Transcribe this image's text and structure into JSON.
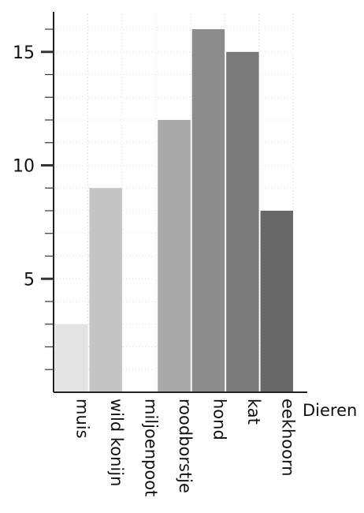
{
  "chart_data": {
    "type": "bar",
    "title": "",
    "xlabel": "Dieren",
    "ylabel": "",
    "categories": [
      "muis",
      "wild konijn",
      "miljoenpoot",
      "roodborstje",
      "hond",
      "kat",
      "eekhoorn"
    ],
    "values": [
      3,
      9,
      0,
      12,
      16,
      15,
      8
    ],
    "ylim": [
      0,
      16
    ],
    "yticks_major": [
      5,
      10,
      15
    ],
    "yticks_major_labels": [
      "5",
      "10",
      "15"
    ],
    "yticks_minor_step": 1,
    "grid": true,
    "bar_colors": [
      "#e3e3e3",
      "#c4c4c4",
      "#ffffff",
      "#a8a8a8",
      "#8c8c8c",
      "#7a7a7a",
      "#676767"
    ]
  }
}
